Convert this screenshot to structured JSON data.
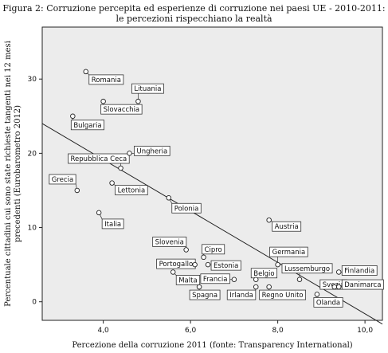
{
  "figure_title": "Figura 2: Corruzione percepita ed esperienze di corruzione nei paesi UE - 2010-2011: le percezioni rispecchiano la realtà",
  "chart_data": {
    "type": "scatter",
    "xlabel": "Percezione della corruzione 2011 (fonte: Transparency International)",
    "ylabel": "Percentuale cittadini cui sono state richieste tangenti nei 12 mesi precedenti (Eurobarometro 2012)",
    "xlim": [
      2.6,
      10.4
    ],
    "ylim": [
      -2.5,
      37
    ],
    "x_ticks": [
      "4,0",
      "6,0",
      "8,0",
      "10,0"
    ],
    "x_tick_values": [
      4,
      6,
      8,
      10
    ],
    "y_ticks": [
      "0",
      "10",
      "20",
      "30"
    ],
    "y_tick_values": [
      0,
      10,
      20,
      30
    ],
    "grid": false,
    "plot_background": "#ececec",
    "marker": "open-circle",
    "points": [
      {
        "label": "Romania",
        "x": 3.6,
        "y": 31
      },
      {
        "label": "Lituania",
        "x": 4.8,
        "y": 27
      },
      {
        "label": "Slovacchia",
        "x": 4.0,
        "y": 27
      },
      {
        "label": "Bulgaria",
        "x": 3.3,
        "y": 25
      },
      {
        "label": "Ungheria",
        "x": 4.6,
        "y": 20
      },
      {
        "label": "Repubblica Ceca",
        "x": 4.4,
        "y": 18
      },
      {
        "label": "Grecia",
        "x": 3.4,
        "y": 15
      },
      {
        "label": "Lettonia",
        "x": 4.2,
        "y": 16
      },
      {
        "label": "Polonia",
        "x": 5.5,
        "y": 14
      },
      {
        "label": "Italia",
        "x": 3.9,
        "y": 12
      },
      {
        "label": "Austria",
        "x": 7.8,
        "y": 11
      },
      {
        "label": "Slovenia",
        "x": 5.9,
        "y": 7
      },
      {
        "label": "Cipro",
        "x": 6.3,
        "y": 6
      },
      {
        "label": "Germania",
        "x": 8.0,
        "y": 5
      },
      {
        "label": "Portogallo",
        "x": 6.1,
        "y": 5
      },
      {
        "label": "Estonia",
        "x": 6.4,
        "y": 5
      },
      {
        "label": "Malta",
        "x": 5.6,
        "y": 4
      },
      {
        "label": "Belgio",
        "x": 7.5,
        "y": 3
      },
      {
        "label": "Francia",
        "x": 7.0,
        "y": 3
      },
      {
        "label": "Lussemburgo",
        "x": 8.5,
        "y": 3
      },
      {
        "label": "Finlandia",
        "x": 9.4,
        "y": 4
      },
      {
        "label": "Svezia",
        "x": 9.3,
        "y": 2
      },
      {
        "label": "Danimarca",
        "x": 9.4,
        "y": 2
      },
      {
        "label": "Spagna",
        "x": 6.2,
        "y": 2
      },
      {
        "label": "Irlanda",
        "x": 7.5,
        "y": 2
      },
      {
        "label": "Regno Unito",
        "x": 7.8,
        "y": 2
      },
      {
        "label": "Olanda",
        "x": 8.9,
        "y": 1
      }
    ],
    "fit_line": {
      "x": [
        2.6,
        10.4
      ],
      "y": [
        24.0,
        -3.0
      ]
    }
  }
}
